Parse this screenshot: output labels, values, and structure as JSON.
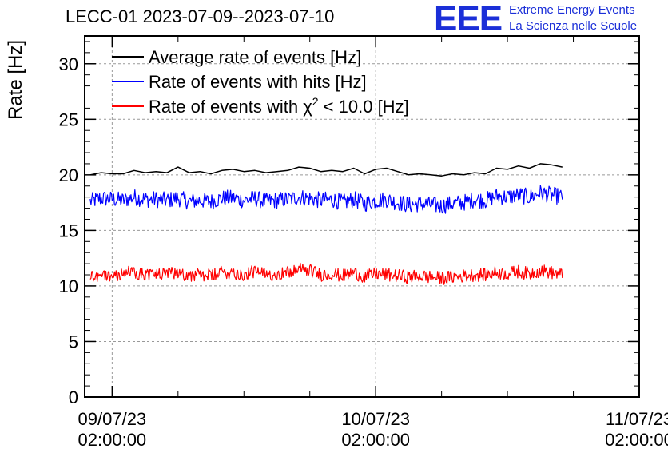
{
  "header": {
    "title": "LECC-01 2023-07-09--2023-07-10",
    "logo_text": "EEE",
    "logo_line1": "Extreme Energy Events",
    "logo_line2": "La Scienza nelle Scuole"
  },
  "colors": {
    "average": "#000000",
    "hits": "#0000ff",
    "chi2": "#ff0000",
    "logo": "#1b2fd8",
    "grid": "#999999"
  },
  "chart_data": {
    "type": "line",
    "title": "LECC-01 2023-07-09--2023-07-10",
    "ylabel": "Rate [Hz]",
    "xlabel": "",
    "ylim": [
      0,
      32.5
    ],
    "yticks": [
      0,
      5,
      10,
      15,
      20,
      25,
      30
    ],
    "xlim": [
      "2023-07-08T23:30:00",
      "2023-07-11T02:00:00"
    ],
    "xticks": [
      {
        "date": "09/07/23",
        "time": "02:00:00",
        "t": "2023-07-09T02:00:00"
      },
      {
        "date": "10/07/23",
        "time": "02:00:00",
        "t": "2023-07-10T02:00:00"
      },
      {
        "date": "11/07/23",
        "time": "02:00:00",
        "t": "2023-07-11T02:00:00"
      }
    ],
    "grid": true,
    "legend_position": "top-left",
    "series": [
      {
        "name": "Average rate of events [Hz]",
        "key": "average",
        "t_start": "2023-07-09T00:00:00",
        "step_minutes": 60,
        "values": [
          20.0,
          20.2,
          20.1,
          20.1,
          20.4,
          20.2,
          20.3,
          20.2,
          20.7,
          20.2,
          20.3,
          20.1,
          20.4,
          20.5,
          20.3,
          20.4,
          20.2,
          20.3,
          20.4,
          20.7,
          20.6,
          20.3,
          20.4,
          20.3,
          20.6,
          20.1,
          20.5,
          20.6,
          20.3,
          20.0,
          20.1,
          20.0,
          19.9,
          20.1,
          20.0,
          20.2,
          20.1,
          20.6,
          20.5,
          20.8,
          20.6,
          21.0,
          20.9,
          20.7
        ]
      },
      {
        "name": "Rate of events with hits [Hz]",
        "key": "hits",
        "t_start": "2023-07-09T00:00:00",
        "step_minutes": 60,
        "values": [
          17.6,
          17.9,
          17.8,
          17.7,
          18.0,
          17.8,
          17.8,
          17.7,
          17.9,
          17.6,
          17.7,
          17.6,
          17.9,
          17.9,
          17.7,
          17.9,
          17.6,
          17.7,
          17.8,
          18.0,
          17.9,
          17.7,
          17.8,
          17.5,
          17.8,
          17.4,
          17.7,
          17.8,
          17.5,
          17.3,
          17.4,
          17.3,
          17.2,
          17.4,
          17.5,
          17.8,
          17.7,
          18.1,
          18.0,
          18.2,
          18.0,
          18.4,
          18.2,
          18.0
        ]
      },
      {
        "name": "Rate of events with χ² < 10.0 [Hz]",
        "key": "chi2",
        "t_start": "2023-07-09T00:00:00",
        "step_minutes": 60,
        "values": [
          10.9,
          11.0,
          10.9,
          11.1,
          11.3,
          11.0,
          11.1,
          11.0,
          11.3,
          10.9,
          11.0,
          10.9,
          11.2,
          11.2,
          11.0,
          11.3,
          11.0,
          11.1,
          11.2,
          11.5,
          11.4,
          11.0,
          11.1,
          10.9,
          11.2,
          10.8,
          11.1,
          11.0,
          10.9,
          10.8,
          10.9,
          10.8,
          10.7,
          10.8,
          10.9,
          11.0,
          11.0,
          11.2,
          11.1,
          11.3,
          11.1,
          11.4,
          11.2,
          11.0
        ]
      }
    ],
    "legend_entries": [
      {
        "key": "average",
        "prefix": "Average rate of events [Hz]",
        "suffix": ""
      },
      {
        "key": "hits",
        "prefix": "Rate of events with hits [Hz]",
        "suffix": ""
      },
      {
        "key": "chi2",
        "prefix": "Rate of events with χ",
        "sup": "2",
        "suffix": " < 10.0 [Hz]"
      }
    ]
  }
}
